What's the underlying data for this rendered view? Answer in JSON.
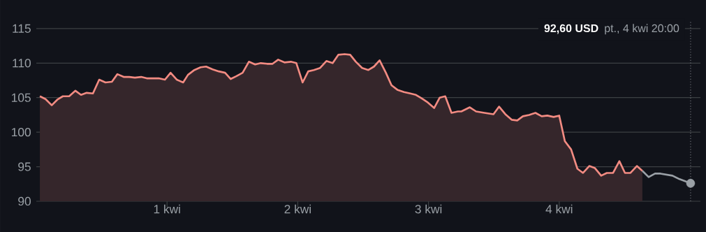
{
  "chart_data": {
    "type": "area",
    "xlim": [
      0,
      5.08
    ],
    "ylim": [
      90,
      116
    ],
    "xticks": [
      {
        "value": 1,
        "label": "1 kwi"
      },
      {
        "value": 2,
        "label": "2 kwi"
      },
      {
        "value": 3,
        "label": "3 kwi"
      },
      {
        "value": 4,
        "label": "4 kwi"
      }
    ],
    "yticks": [
      90,
      95,
      100,
      105,
      110,
      115
    ],
    "grid": "y",
    "legend": false,
    "series": [
      {
        "color": "#f28b82",
        "x": [
          0.027,
          0.07,
          0.118,
          0.16,
          0.203,
          0.251,
          0.299,
          0.342,
          0.385,
          0.433,
          0.481,
          0.529,
          0.578,
          0.62,
          0.668,
          0.711,
          0.754,
          0.802,
          0.845,
          0.888,
          0.936,
          0.984,
          1.027,
          1.075,
          1.123,
          1.16,
          1.209,
          1.257,
          1.299,
          1.348,
          1.396,
          1.444,
          1.487,
          1.529,
          1.578,
          1.626,
          1.674,
          1.717,
          1.765,
          1.807,
          1.85,
          1.898,
          1.947,
          1.989,
          2.037,
          2.08,
          2.123,
          2.171,
          2.219,
          2.267,
          2.31,
          2.358,
          2.401,
          2.444,
          2.492,
          2.54,
          2.583,
          2.626,
          2.674,
          2.717,
          2.765,
          2.813,
          2.861,
          2.904,
          2.947,
          2.995,
          3.043,
          3.086,
          3.128,
          3.176,
          3.225,
          3.251,
          3.316,
          3.364,
          3.428,
          3.497,
          3.54,
          3.588,
          3.636,
          3.679,
          3.722,
          3.77,
          3.818,
          3.866,
          3.909,
          3.957,
          4.0,
          4.043,
          4.091,
          4.139,
          4.182,
          4.23,
          4.273,
          4.321,
          4.364,
          4.412,
          4.46,
          4.503,
          4.545,
          4.594,
          4.636
        ],
        "values": [
          105.2,
          104.8,
          103.9,
          104.7,
          105.2,
          105.2,
          106.0,
          105.4,
          105.7,
          105.6,
          107.6,
          107.2,
          107.3,
          108.4,
          108.0,
          108.0,
          107.9,
          108.0,
          107.8,
          107.8,
          107.8,
          107.6,
          108.6,
          107.6,
          107.2,
          108.3,
          109.0,
          109.4,
          109.5,
          109.1,
          108.8,
          108.6,
          107.7,
          108.1,
          108.6,
          110.2,
          109.8,
          110.0,
          109.9,
          109.9,
          110.5,
          110.1,
          110.2,
          110.0,
          107.2,
          108.8,
          109.0,
          109.3,
          110.3,
          110.0,
          111.2,
          111.3,
          111.2,
          110.2,
          109.3,
          109.0,
          109.5,
          110.4,
          108.6,
          106.8,
          106.1,
          105.8,
          105.6,
          105.4,
          104.9,
          104.3,
          103.5,
          105.0,
          105.2,
          102.8,
          103.0,
          103.0,
          103.6,
          103.0,
          102.8,
          102.6,
          103.7,
          102.6,
          101.8,
          101.7,
          102.3,
          102.5,
          102.8,
          102.3,
          102.4,
          102.2,
          102.4,
          98.7,
          97.5,
          94.7,
          94.1,
          95.1,
          94.8,
          93.7,
          94.1,
          94.1,
          95.8,
          94.1,
          94.1,
          95.1,
          94.4
        ]
      },
      {
        "type": "line",
        "color": "#9aa0a6",
        "x": [
          4.636,
          4.684,
          4.733,
          4.775,
          4.866,
          4.92,
          5.005
        ],
        "values": [
          94.4,
          93.5,
          94.0,
          94.0,
          93.7,
          93.2,
          92.6
        ]
      },
      {
        "type": "scatter",
        "color": "#9aa0a6",
        "x": [
          5.005
        ],
        "values": [
          92.6
        ]
      }
    ],
    "ref_lines": [
      {
        "axis": "x",
        "value": 5.005,
        "line_style": "dotted",
        "color": "#6b6e75"
      }
    ],
    "annotations": [
      "92,60 USD",
      "pt., 4 kwi 20:00"
    ]
  }
}
